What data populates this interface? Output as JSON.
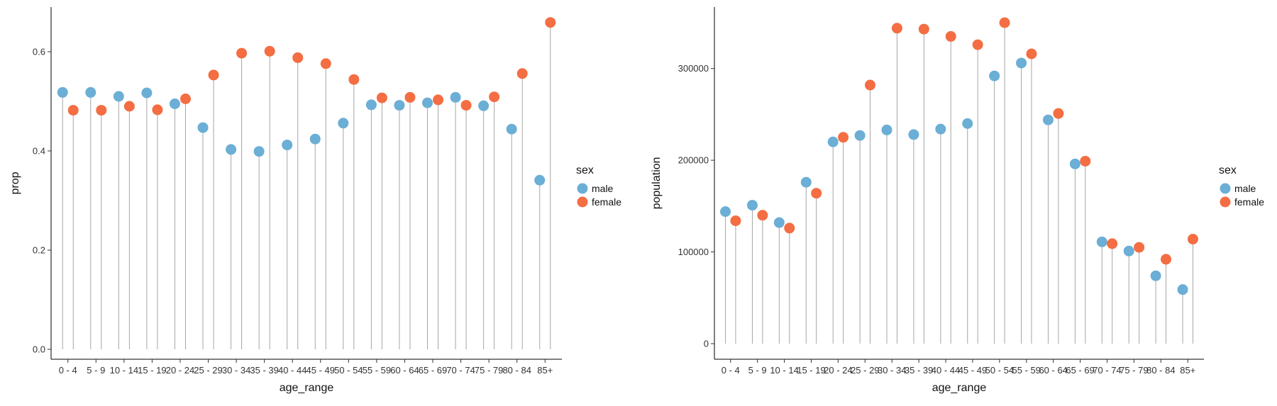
{
  "colors": {
    "male": "#6baed6",
    "female": "#f46d43",
    "stem": "#a6a6a6",
    "axis": "#000000"
  },
  "chart_data": [
    {
      "type": "lollipop",
      "xlabel": "age_range",
      "ylabel": "prop",
      "categories": [
        "0 - 4",
        "5 - 9",
        "10 - 14",
        "15 - 19",
        "20 - 24",
        "25 - 29",
        "30 - 34",
        "35 - 39",
        "40 - 44",
        "45 - 49",
        "50 - 54",
        "55 - 59",
        "60 - 64",
        "65 - 69",
        "70 - 74",
        "75 - 79",
        "80 - 84",
        "85+"
      ],
      "ylim": [
        -0.02,
        0.69
      ],
      "yticks": [
        0.0,
        0.2,
        0.4,
        0.6
      ],
      "ytick_labels": [
        "0.0",
        "0.2",
        "0.4",
        "0.6"
      ],
      "legend": {
        "title": "sex",
        "placement": "right",
        "entries": [
          "male",
          "female"
        ]
      },
      "series": [
        {
          "name": "male",
          "values": [
            0.518,
            0.518,
            0.51,
            0.517,
            0.495,
            0.447,
            0.403,
            0.399,
            0.412,
            0.424,
            0.456,
            0.493,
            0.492,
            0.497,
            0.508,
            0.491,
            0.444,
            0.341
          ]
        },
        {
          "name": "female",
          "values": [
            0.482,
            0.482,
            0.49,
            0.483,
            0.505,
            0.553,
            0.597,
            0.601,
            0.588,
            0.576,
            0.544,
            0.507,
            0.508,
            0.503,
            0.492,
            0.509,
            0.556,
            0.659
          ]
        }
      ]
    },
    {
      "type": "lollipop",
      "xlabel": "age_range",
      "ylabel": "population",
      "categories": [
        "0 - 4",
        "5 - 9",
        "10 - 14",
        "15 - 19",
        "20 - 24",
        "25 - 29",
        "30 - 34",
        "35 - 39",
        "40 - 44",
        "45 - 49",
        "50 - 54",
        "55 - 59",
        "60 - 64",
        "65 - 69",
        "70 - 74",
        "75 - 79",
        "80 - 84",
        "85+"
      ],
      "ylim": [
        -17000,
        367000
      ],
      "yticks": [
        0,
        100000,
        200000,
        300000
      ],
      "ytick_labels": [
        "0",
        "100000",
        "200000",
        "300000"
      ],
      "legend": {
        "title": "sex",
        "placement": "right",
        "entries": [
          "male",
          "female"
        ]
      },
      "series": [
        {
          "name": "male",
          "values": [
            144000,
            151000,
            132000,
            176000,
            220000,
            227000,
            233000,
            228000,
            234000,
            240000,
            292000,
            306000,
            244000,
            196000,
            111000,
            101000,
            74000,
            59000
          ]
        },
        {
          "name": "female",
          "values": [
            134000,
            140000,
            126000,
            164000,
            225000,
            282000,
            344000,
            343000,
            335000,
            326000,
            350000,
            316000,
            251000,
            199000,
            109000,
            105000,
            92000,
            114000
          ]
        }
      ]
    }
  ]
}
